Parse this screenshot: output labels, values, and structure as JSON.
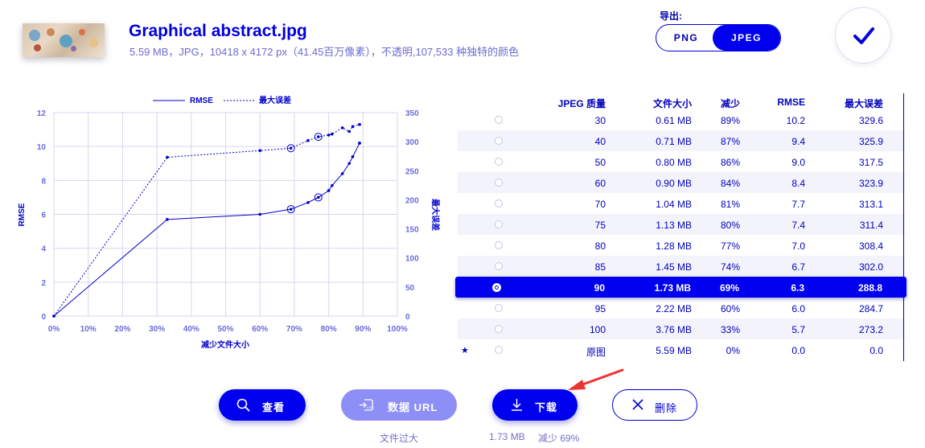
{
  "file": {
    "name": "Graphical abstract.jpg",
    "meta": "5.59 MB，JPG，10418 x 4172 px（41.45百万像素），不透明,107,533 种独特的颜色"
  },
  "export": {
    "label": "导出:",
    "formats": [
      "PNG",
      "JPEG"
    ],
    "selected": "JPEG"
  },
  "confirm_icon": "checkmark-icon",
  "chart_data": {
    "type": "line",
    "legend": [
      "RMSE",
      "最大误差"
    ],
    "legend_position": "top-center",
    "xlabel": "减少文件大小",
    "ylabel_left": "RMSE",
    "ylabel_right": "最大误差",
    "xlim": [
      0,
      100
    ],
    "ylim_left": [
      0,
      12
    ],
    "ylim_right": [
      0,
      350
    ],
    "x_ticks": [
      "0%",
      "10%",
      "20%",
      "30%",
      "40%",
      "50%",
      "60%",
      "70%",
      "80%",
      "90%",
      "100%"
    ],
    "y_left_ticks": [
      "0",
      "2",
      "4",
      "6",
      "8",
      "10",
      "12"
    ],
    "y_right_ticks": [
      "0",
      "50",
      "100",
      "150",
      "200",
      "250",
      "300",
      "350"
    ],
    "grid": true,
    "series": [
      {
        "name": "RMSE",
        "axis": "left",
        "style": "solid",
        "x": [
          0,
          33,
          60,
          69,
          74,
          77,
          80,
          81,
          84,
          86,
          87,
          89,
          89
        ],
        "y": [
          0.0,
          5.7,
          6.0,
          6.3,
          6.7,
          7.0,
          7.4,
          7.7,
          8.4,
          9.0,
          9.4,
          10.2,
          10.2
        ]
      },
      {
        "name": "最大误差",
        "axis": "right",
        "style": "dotted",
        "x": [
          0,
          33,
          60,
          69,
          74,
          77,
          80,
          81,
          84,
          86,
          87,
          89,
          89
        ],
        "y": [
          0.0,
          273.2,
          284.7,
          288.8,
          302.0,
          308.4,
          311.4,
          313.1,
          323.9,
          317.5,
          325.9,
          329.6,
          329.6
        ]
      }
    ],
    "highlight_x": [
      69,
      77
    ]
  },
  "table": {
    "headers": [
      "JPEG 质量",
      "文件大小",
      "减少",
      "RMSE",
      "最大误差"
    ],
    "rows": [
      {
        "q": "30",
        "size": "0.61 MB",
        "red": "89%",
        "rmse": "10.2",
        "max": "329.6"
      },
      {
        "q": "40",
        "size": "0.71 MB",
        "red": "87%",
        "rmse": "9.4",
        "max": "325.9"
      },
      {
        "q": "50",
        "size": "0.80 MB",
        "red": "86%",
        "rmse": "9.0",
        "max": "317.5"
      },
      {
        "q": "60",
        "size": "0.90 MB",
        "red": "84%",
        "rmse": "8.4",
        "max": "323.9"
      },
      {
        "q": "70",
        "size": "1.04 MB",
        "red": "81%",
        "rmse": "7.7",
        "max": "313.1"
      },
      {
        "q": "75",
        "size": "1.13 MB",
        "red": "80%",
        "rmse": "7.4",
        "max": "311.4"
      },
      {
        "q": "80",
        "size": "1.28 MB",
        "red": "77%",
        "rmse": "7.0",
        "max": "308.4"
      },
      {
        "q": "85",
        "size": "1.45 MB",
        "red": "74%",
        "rmse": "6.7",
        "max": "302.0"
      },
      {
        "q": "90",
        "size": "1.73 MB",
        "red": "69%",
        "rmse": "6.3",
        "max": "288.8"
      },
      {
        "q": "95",
        "size": "2.22 MB",
        "red": "60%",
        "rmse": "6.0",
        "max": "284.7"
      },
      {
        "q": "100",
        "size": "3.76 MB",
        "red": "33%",
        "rmse": "5.7",
        "max": "273.2"
      },
      {
        "q": "原图",
        "size": "5.59 MB",
        "red": "0%",
        "rmse": "0.0",
        "max": "0.0"
      }
    ],
    "selected_index": 8,
    "original_marker": "★"
  },
  "actions": {
    "view": "查看",
    "data_url": "数据 URL",
    "download": "下载",
    "delete": "删除"
  },
  "notes": {
    "data_url": "文件过大",
    "download_size": "1.73 MB",
    "download_reduction": "减少 69%"
  }
}
